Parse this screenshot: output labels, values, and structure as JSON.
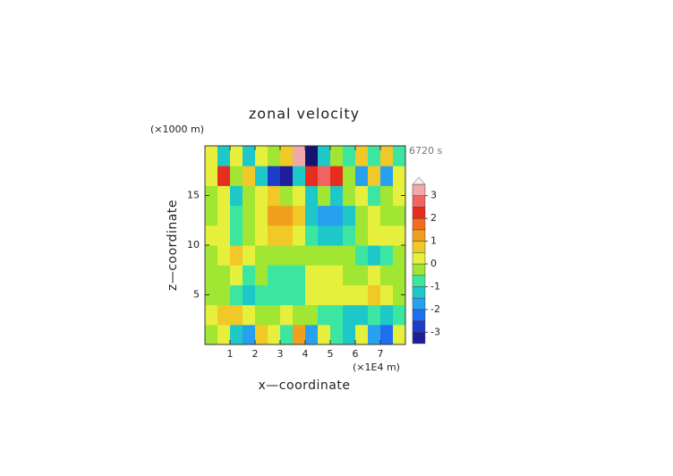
{
  "chart_data": {
    "type": "contour",
    "title": "zonal velocity",
    "y_unit": "(×1000 m)",
    "x_unit": "(×1E4 m)",
    "time_label": "6720 s",
    "xlabel": "x—coordinate",
    "ylabel": "z—coordinate",
    "xlim": [
      0,
      8
    ],
    "ylim": [
      0,
      20
    ],
    "xticks": [
      1,
      2,
      3,
      4,
      5,
      6,
      7
    ],
    "yticks": [
      5,
      10,
      15
    ],
    "levels": [
      -3.5,
      -3,
      -2.5,
      -2,
      -1.5,
      -1,
      -0.5,
      0,
      0.5,
      1,
      1.5,
      2,
      2.5,
      3,
      3.5
    ],
    "colors": [
      "#14146e",
      "#1e1e9a",
      "#1e3cc8",
      "#1e6ef0",
      "#28a0f0",
      "#1ec8c8",
      "#3ce6a0",
      "#a0e632",
      "#e6f03c",
      "#f0c828",
      "#f0a01e",
      "#f06e1e",
      "#e62d1e",
      "#f06464",
      "#f0a8a8",
      "#f8f0f0"
    ],
    "colorbar_ticks": [
      -3,
      -2,
      -1,
      0,
      1,
      2,
      3
    ],
    "z": [
      [
        -0.2,
        0.3,
        -1.2,
        -1.7,
        0.8,
        0.3,
        -0.7,
        1.3,
        -1.7,
        0.3,
        -0.7,
        -1.2,
        0.3,
        -1.7,
        -2.2,
        0.3
      ],
      [
        0.3,
        0.8,
        0.8,
        0.3,
        -0.2,
        -0.2,
        0.3,
        -0.2,
        -0.2,
        -0.7,
        -0.7,
        -1.2,
        -1.2,
        -0.7,
        -1.2,
        -0.7
      ],
      [
        -0.2,
        -0.2,
        -0.7,
        -1.2,
        -0.7,
        -0.7,
        -0.7,
        -0.7,
        0.3,
        0.3,
        0.3,
        0.3,
        0.3,
        0.8,
        0.3,
        -0.2
      ],
      [
        -0.2,
        -0.2,
        0.3,
        -0.7,
        -0.2,
        -0.7,
        -0.7,
        -0.7,
        0.3,
        0.3,
        0.3,
        -0.2,
        -0.2,
        0.3,
        -0.2,
        -0.2
      ],
      [
        -0.2,
        0.3,
        0.8,
        0.3,
        -0.2,
        -0.2,
        -0.2,
        -0.2,
        -0.2,
        -0.2,
        -0.2,
        -0.2,
        -0.7,
        -1.2,
        -0.7,
        -0.2
      ],
      [
        0.3,
        0.3,
        -0.7,
        -0.2,
        0.3,
        0.8,
        0.8,
        0.3,
        -0.7,
        -1.2,
        -1.2,
        -0.7,
        -0.2,
        0.3,
        0.3,
        0.3
      ],
      [
        -0.2,
        0.3,
        -0.7,
        -0.2,
        0.3,
        1.3,
        1.3,
        0.8,
        -1.2,
        -1.7,
        -1.7,
        -1.2,
        -0.2,
        0.3,
        -0.2,
        -0.2
      ],
      [
        -0.2,
        0.3,
        -1.2,
        -0.2,
        0.3,
        0.8,
        -0.2,
        0.3,
        -1.2,
        -0.2,
        -1.2,
        -0.2,
        0.3,
        -0.7,
        -0.2,
        0.3
      ],
      [
        0.3,
        2.2,
        -0.2,
        0.8,
        -1.2,
        -2.7,
        -3.2,
        -1.2,
        2.2,
        2.8,
        2.2,
        -0.2,
        -1.7,
        0.8,
        -1.7,
        0.3
      ],
      [
        0.3,
        -1.2,
        0.3,
        -1.2,
        0.3,
        -0.2,
        0.8,
        3.3,
        -3.6,
        -1.2,
        -0.2,
        -0.7,
        0.8,
        -0.7,
        0.8,
        -0.7
      ]
    ]
  }
}
